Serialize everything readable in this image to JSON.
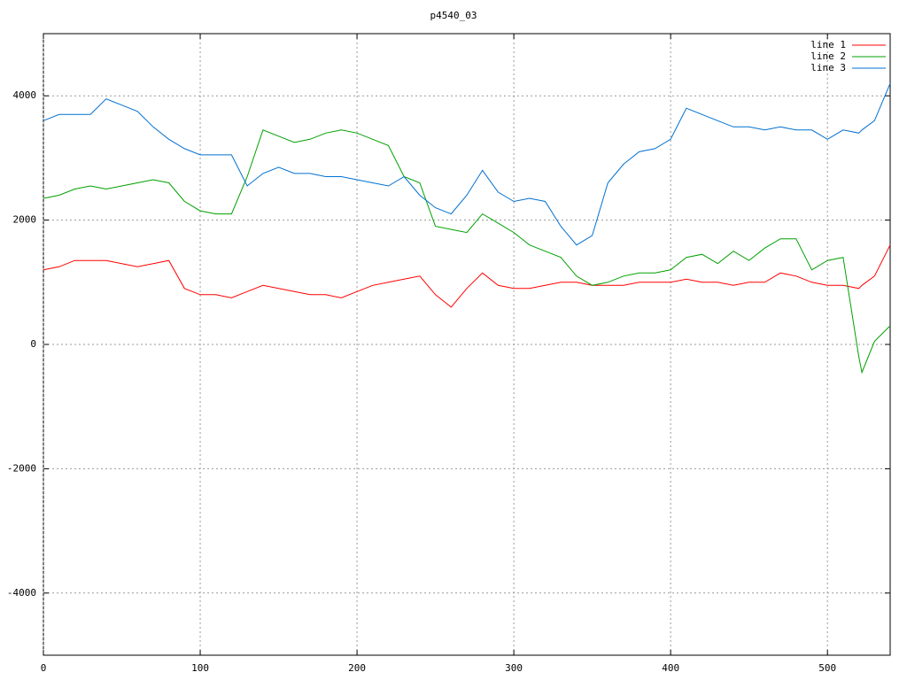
{
  "chart_data": {
    "type": "line",
    "title": "p4540_03",
    "x": [
      0,
      10,
      20,
      30,
      40,
      50,
      60,
      70,
      80,
      90,
      100,
      110,
      120,
      130,
      140,
      150,
      160,
      170,
      180,
      190,
      200,
      210,
      220,
      230,
      240,
      250,
      260,
      270,
      280,
      290,
      300,
      310,
      320,
      330,
      340,
      350,
      360,
      370,
      380,
      390,
      400,
      410,
      420,
      430,
      440,
      450,
      460,
      470,
      480,
      490,
      500,
      510,
      520,
      522,
      530,
      540
    ],
    "series": [
      {
        "name": "line 1",
        "color": "#ff0000",
        "values": [
          1200,
          1250,
          1350,
          1350,
          1350,
          1300,
          1250,
          1300,
          1350,
          900,
          800,
          800,
          750,
          850,
          950,
          900,
          850,
          800,
          800,
          750,
          850,
          950,
          1000,
          1050,
          1100,
          800,
          600,
          900,
          1150,
          950,
          900,
          900,
          950,
          1000,
          1000,
          950,
          950,
          950,
          1000,
          1000,
          1000,
          1050,
          1000,
          1000,
          950,
          1000,
          1000,
          1150,
          1100,
          1000,
          950,
          950,
          900,
          950,
          1100,
          1600
        ]
      },
      {
        "name": "line 2",
        "color": "#00a000",
        "values": [
          2350,
          2400,
          2500,
          2550,
          2500,
          2550,
          2600,
          2650,
          2600,
          2300,
          2150,
          2100,
          2100,
          2700,
          3450,
          3350,
          3250,
          3300,
          3400,
          3450,
          3400,
          3300,
          3200,
          2700,
          2600,
          1900,
          1850,
          1800,
          2100,
          1950,
          1800,
          1600,
          1500,
          1400,
          1100,
          950,
          1000,
          1100,
          1150,
          1150,
          1200,
          1400,
          1450,
          1300,
          1500,
          1350,
          1550,
          1700,
          1700,
          1200,
          1350,
          1400,
          -200,
          -450,
          50,
          300
        ]
      },
      {
        "name": "line 3",
        "color": "#0070d0",
        "values": [
          3600,
          3700,
          3700,
          3700,
          3950,
          3850,
          3750,
          3500,
          3300,
          3150,
          3050,
          3050,
          3050,
          2550,
          2750,
          2850,
          2750,
          2750,
          2700,
          2700,
          2650,
          2600,
          2550,
          2700,
          2400,
          2200,
          2100,
          2400,
          2800,
          2450,
          2300,
          2350,
          2300,
          1900,
          1600,
          1750,
          2600,
          2900,
          3100,
          3150,
          3300,
          3800,
          3700,
          3600,
          3500,
          3500,
          3450,
          3500,
          3450,
          3450,
          3300,
          3450,
          3400,
          3450,
          3600,
          4200
        ]
      }
    ],
    "xlim": [
      0,
      540
    ],
    "ylim": [
      -5000,
      5000
    ],
    "xticks": [
      0,
      100,
      200,
      300,
      400,
      500
    ],
    "yticks": [
      -4000,
      -2000,
      0,
      2000,
      4000
    ],
    "grid": true,
    "legend": "top-right"
  }
}
